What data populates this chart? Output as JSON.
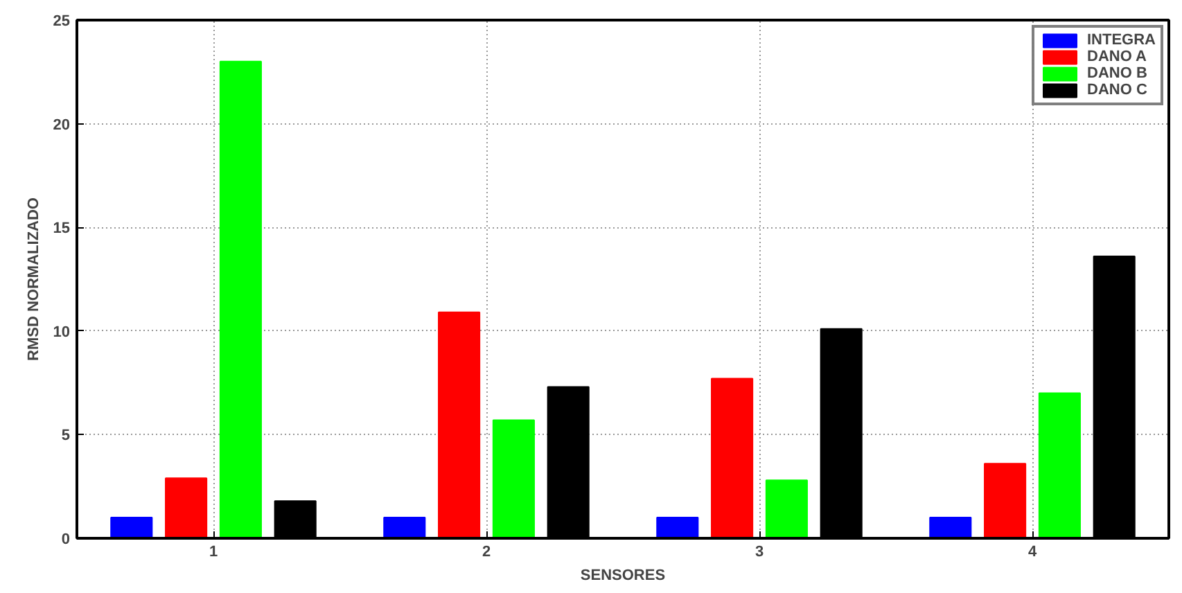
{
  "chart_data": {
    "type": "bar",
    "xlabel": "SENSORES",
    "ylabel": "RMSD NORMALIZADO",
    "categories": [
      "1",
      "2",
      "3",
      "4"
    ],
    "series": [
      {
        "name": "INTEGRA",
        "color": "#0000ff",
        "values": [
          1.0,
          1.0,
          1.0,
          1.0
        ]
      },
      {
        "name": "DANO A",
        "color": "#ff0000",
        "values": [
          2.9,
          10.9,
          7.7,
          3.6
        ]
      },
      {
        "name": "DANO B",
        "color": "#00ff00",
        "values": [
          23.0,
          5.7,
          2.8,
          7.0
        ]
      },
      {
        "name": "DANO C",
        "color": "#000000",
        "values": [
          1.8,
          7.3,
          10.1,
          13.6
        ]
      }
    ],
    "ylim": [
      0,
      25
    ],
    "yticks": [
      0,
      5,
      10,
      15,
      20,
      25
    ],
    "grid": true,
    "legend": "top right"
  }
}
